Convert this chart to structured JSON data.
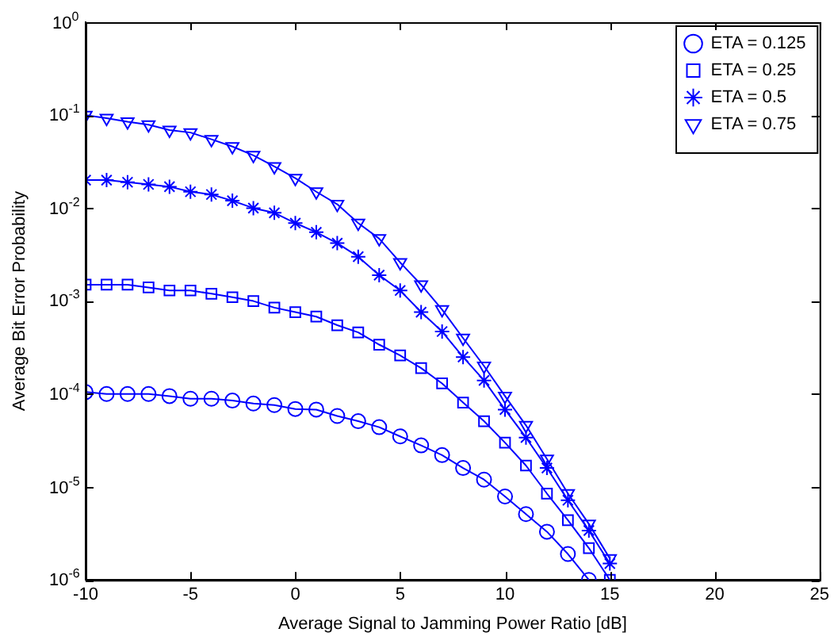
{
  "chart_data": {
    "type": "line",
    "xlabel": "Average Signal to Jamming Power Ratio [dB]",
    "ylabel": "Average Bit Error Probability",
    "log": "y",
    "grid": false,
    "legend": "top right",
    "line_style": "solid",
    "xlim": [
      -10,
      25
    ],
    "xticks": [
      -10,
      -5,
      0,
      5,
      10,
      15,
      20,
      25
    ],
    "ylim": [
      1e-06,
      1
    ],
    "yticks": [
      {
        "value": 1e-06,
        "label": "10$^{-6}$"
      },
      {
        "value": 1e-05,
        "label": "10$^{-5}$"
      },
      {
        "value": 0.0001,
        "label": "10$^{-4}$"
      },
      {
        "value": 0.001,
        "label": "10$^{-3}$"
      },
      {
        "value": 0.01,
        "label": "10$^{-2}$"
      },
      {
        "value": 0.1,
        "label": "10$^{-1}$"
      },
      {
        "value": 1,
        "label": "10$^{0}$"
      }
    ],
    "series": [
      {
        "name": "ETA = 0.125",
        "color": "#0000ff",
        "marker": "circle",
        "x": [
          -10,
          -9,
          -8,
          -7,
          -6,
          -5,
          -4,
          -3,
          -2,
          -1,
          0,
          1,
          2,
          3,
          4,
          5,
          6,
          7,
          8,
          9,
          10,
          11,
          12,
          13,
          14
        ],
        "values": [
          0.000105,
          0.0001,
          0.0001,
          0.0001,
          9.5e-05,
          8.9e-05,
          8.9e-05,
          8.5e-05,
          7.9e-05,
          7.6e-05,
          6.9e-05,
          6.8e-05,
          5.8e-05,
          5.1e-05,
          4.4e-05,
          3.5e-05,
          2.8e-05,
          2.2e-05,
          1.6e-05,
          1.2e-05,
          7.9e-06,
          5.1e-06,
          3.3e-06,
          1.9e-06,
          1e-06
        ]
      },
      {
        "name": "ETA = 0.25",
        "color": "#0000ff",
        "marker": "square",
        "x": [
          -10,
          -9,
          -8,
          -7,
          -6,
          -5,
          -4,
          -3,
          -2,
          -1,
          0,
          1,
          2,
          3,
          4,
          5,
          6,
          7,
          8,
          9,
          10,
          11,
          12,
          13,
          14,
          15
        ],
        "values": [
          0.0015,
          0.0015,
          0.0015,
          0.0014,
          0.0013,
          0.0013,
          0.0012,
          0.0011,
          0.001,
          0.00085,
          0.00076,
          0.00068,
          0.00055,
          0.00046,
          0.00034,
          0.00026,
          0.00019,
          0.00013,
          8.1e-05,
          5.1e-05,
          3e-05,
          1.7e-05,
          8.5e-06,
          4.4e-06,
          2.2e-06,
          1e-06
        ]
      },
      {
        "name": "ETA = 0.5",
        "color": "#0000ff",
        "marker": "cross",
        "x": [
          -10,
          -9,
          -8,
          -7,
          -6,
          -5,
          -4,
          -3,
          -2,
          -1,
          0,
          1,
          2,
          3,
          4,
          5,
          6,
          7,
          8,
          9,
          10,
          11,
          12,
          13,
          14,
          15
        ],
        "values": [
          0.02,
          0.02,
          0.019,
          0.018,
          0.017,
          0.015,
          0.014,
          0.012,
          0.01,
          0.0089,
          0.0069,
          0.0055,
          0.0042,
          0.003,
          0.0019,
          0.0013,
          0.00076,
          0.00047,
          0.00025,
          0.00014,
          6.8e-05,
          3.4e-05,
          1.6e-05,
          7.2e-06,
          3.4e-06,
          1.5e-06
        ]
      },
      {
        "name": "ETA = 0.75",
        "color": "#0000ff",
        "marker": "triangle",
        "x": [
          -10,
          -9,
          -8,
          -7,
          -6,
          -5,
          -4,
          -3,
          -2,
          -1,
          0,
          1,
          2,
          3,
          4,
          5,
          6,
          7,
          8,
          9,
          10,
          11,
          12,
          13,
          14,
          15
        ],
        "values": [
          0.1,
          0.093,
          0.085,
          0.079,
          0.069,
          0.065,
          0.055,
          0.046,
          0.037,
          0.028,
          0.021,
          0.015,
          0.011,
          0.0069,
          0.0047,
          0.0026,
          0.0015,
          0.00081,
          0.0004,
          0.0002,
          9.5e-05,
          4.6e-05,
          2e-05,
          8.5e-06,
          4e-06,
          1.7e-06
        ]
      }
    ]
  }
}
